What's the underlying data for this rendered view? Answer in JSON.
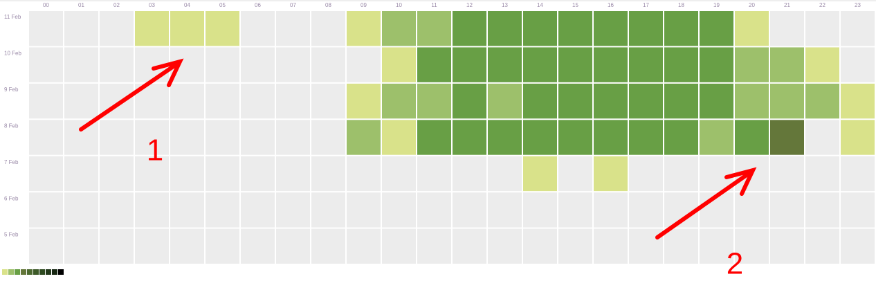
{
  "chart_data": {
    "type": "heatmap",
    "x": [
      "00",
      "01",
      "02",
      "03",
      "04",
      "05",
      "06",
      "07",
      "08",
      "09",
      "10",
      "11",
      "12",
      "13",
      "14",
      "15",
      "16",
      "17",
      "18",
      "19",
      "20",
      "21",
      "22",
      "23"
    ],
    "y": [
      "11 Feb",
      "10 Feb",
      "9 Feb",
      "8 Feb",
      "7 Feb",
      "6 Feb",
      "5 Feb"
    ],
    "values": [
      [
        0,
        0,
        0,
        1,
        1,
        1,
        0,
        0,
        0,
        1,
        2,
        2,
        3,
        3,
        3,
        3,
        3,
        3,
        3,
        3,
        1,
        0,
        0,
        0
      ],
      [
        0,
        0,
        0,
        0,
        0,
        0,
        0,
        0,
        0,
        0,
        1,
        3,
        3,
        3,
        3,
        3,
        3,
        3,
        3,
        3,
        2,
        2,
        1,
        0
      ],
      [
        0,
        0,
        0,
        0,
        0,
        0,
        0,
        0,
        0,
        1,
        2,
        2,
        3,
        2,
        3,
        3,
        3,
        3,
        3,
        3,
        2,
        2,
        2,
        1
      ],
      [
        0,
        0,
        0,
        0,
        0,
        0,
        0,
        0,
        0,
        2,
        1,
        3,
        3,
        3,
        3,
        3,
        3,
        3,
        3,
        2,
        3,
        4,
        0,
        1
      ],
      [
        0,
        0,
        0,
        0,
        0,
        0,
        0,
        0,
        0,
        0,
        0,
        0,
        0,
        0,
        1,
        0,
        1,
        0,
        0,
        0,
        0,
        0,
        0,
        0
      ],
      [
        0,
        0,
        0,
        0,
        0,
        0,
        0,
        0,
        0,
        0,
        0,
        0,
        0,
        0,
        0,
        0,
        0,
        0,
        0,
        0,
        0,
        0,
        0,
        0
      ],
      [
        0,
        0,
        0,
        0,
        0,
        0,
        0,
        0,
        0,
        0,
        0,
        0,
        0,
        0,
        0,
        0,
        0,
        0,
        0,
        0,
        0,
        0,
        0,
        0
      ]
    ],
    "empty_color": "#ececec",
    "colors": [
      "#d9e28a",
      "#9dc06b",
      "#689f45",
      "#64773a",
      "#4d6a30",
      "#3d5a28",
      "#2e4a20",
      "#22381a",
      "#162612",
      "#000000"
    ],
    "annotations": [
      "1",
      "2"
    ]
  }
}
